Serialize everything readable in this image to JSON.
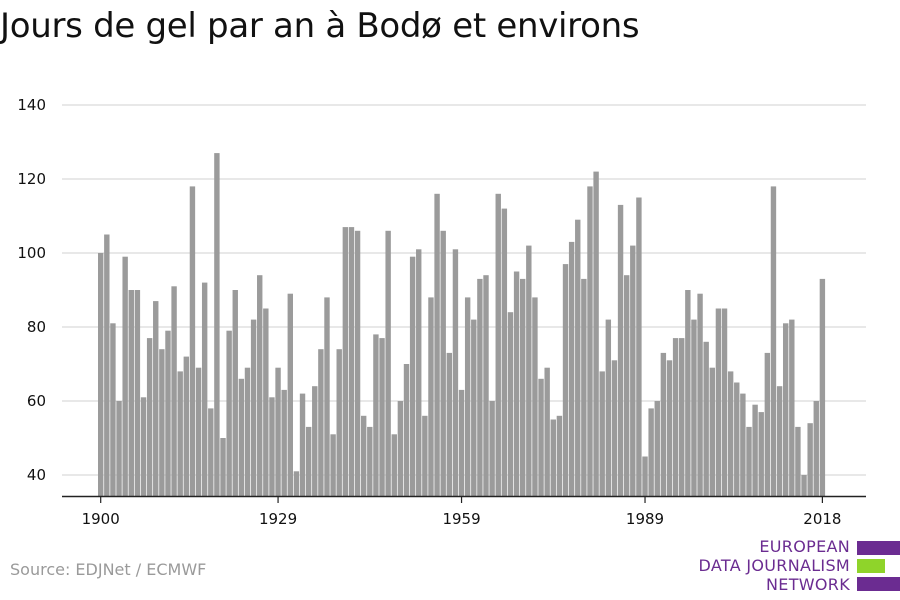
{
  "title": "Jours de gel par an à Bodø et environs",
  "source": "Source: EDJNet / ECMWF",
  "logo": {
    "line1": "EUROPEAN",
    "line2": "DATA JOURNALISM",
    "line3": "NETWORK",
    "colors": {
      "purple": "#6b2c91",
      "green": "#8fd42a"
    }
  },
  "chart_data": {
    "type": "bar",
    "title": "Jours de gel par an à Bodø et environs",
    "xlabel": "",
    "ylabel": "",
    "x_start": 1900,
    "x_ticks": [
      1900,
      1929,
      1959,
      1989,
      2018
    ],
    "y_ticks": [
      40,
      60,
      80,
      100,
      120,
      140
    ],
    "ylim": [
      35,
      140
    ],
    "grid": true,
    "bar_color": "#9b9b9b",
    "values": [
      100,
      105,
      81,
      60,
      99,
      90,
      90,
      61,
      77,
      87,
      74,
      79,
      91,
      68,
      72,
      118,
      69,
      92,
      58,
      127,
      50,
      79,
      90,
      66,
      69,
      82,
      94,
      85,
      61,
      69,
      63,
      89,
      41,
      62,
      53,
      64,
      74,
      88,
      51,
      74,
      107,
      107,
      106,
      56,
      53,
      78,
      77,
      106,
      51,
      60,
      70,
      99,
      101,
      56,
      88,
      116,
      106,
      73,
      101,
      63,
      88,
      82,
      93,
      94,
      60,
      116,
      112,
      84,
      95,
      93,
      102,
      88,
      66,
      69,
      55,
      56,
      97,
      103,
      109,
      93,
      118,
      122,
      68,
      82,
      71,
      113,
      94,
      102,
      115,
      45,
      58,
      60,
      73,
      71,
      77,
      77,
      90,
      82,
      89,
      76,
      69,
      85,
      85,
      68,
      65,
      62,
      53,
      59,
      57,
      73,
      118,
      64,
      81,
      82,
      53,
      40,
      54,
      60,
      93
    ]
  }
}
